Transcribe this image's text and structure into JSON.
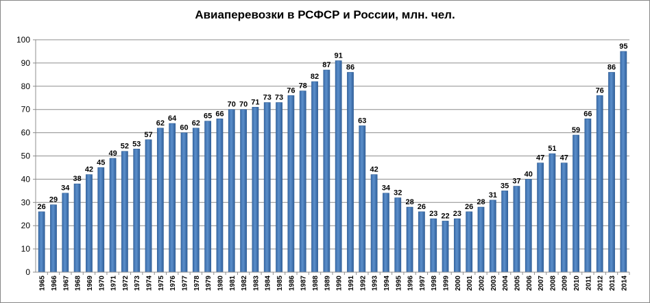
{
  "chart_data": {
    "type": "bar",
    "title": "Авиаперевозки в РСФСР и России, млн. чел.",
    "xlabel": "",
    "ylabel": "",
    "ylim": [
      0,
      100
    ],
    "ytick_step": 10,
    "grid": true,
    "legend": "none",
    "bar_color": "#4A7EBB",
    "categories": [
      "1965",
      "1966",
      "1967",
      "1968",
      "1969",
      "1970",
      "1971",
      "1972",
      "1973",
      "1974",
      "1975",
      "1976",
      "1977",
      "1978",
      "1979",
      "1980",
      "1981",
      "1982",
      "1983",
      "1984",
      "1985",
      "1986",
      "1987",
      "1988",
      "1989",
      "1990",
      "1991",
      "1992",
      "1993",
      "1994",
      "1995",
      "1996",
      "1997",
      "1998",
      "1999",
      "2000",
      "2001",
      "2002",
      "2003",
      "2004",
      "2005",
      "2006",
      "2007",
      "2008",
      "2009",
      "2010",
      "2011",
      "2012",
      "2013",
      "2014"
    ],
    "values": [
      26,
      29,
      34,
      38,
      42,
      45,
      49,
      52,
      53,
      57,
      62,
      64,
      60,
      62,
      65,
      66,
      70,
      70,
      71,
      73,
      73,
      76,
      78,
      82,
      87,
      91,
      86,
      63,
      42,
      34,
      32,
      28,
      26,
      23,
      22,
      23,
      26,
      28,
      31,
      35,
      37,
      40,
      47,
      51,
      47,
      59,
      66,
      76,
      86,
      95
    ]
  }
}
